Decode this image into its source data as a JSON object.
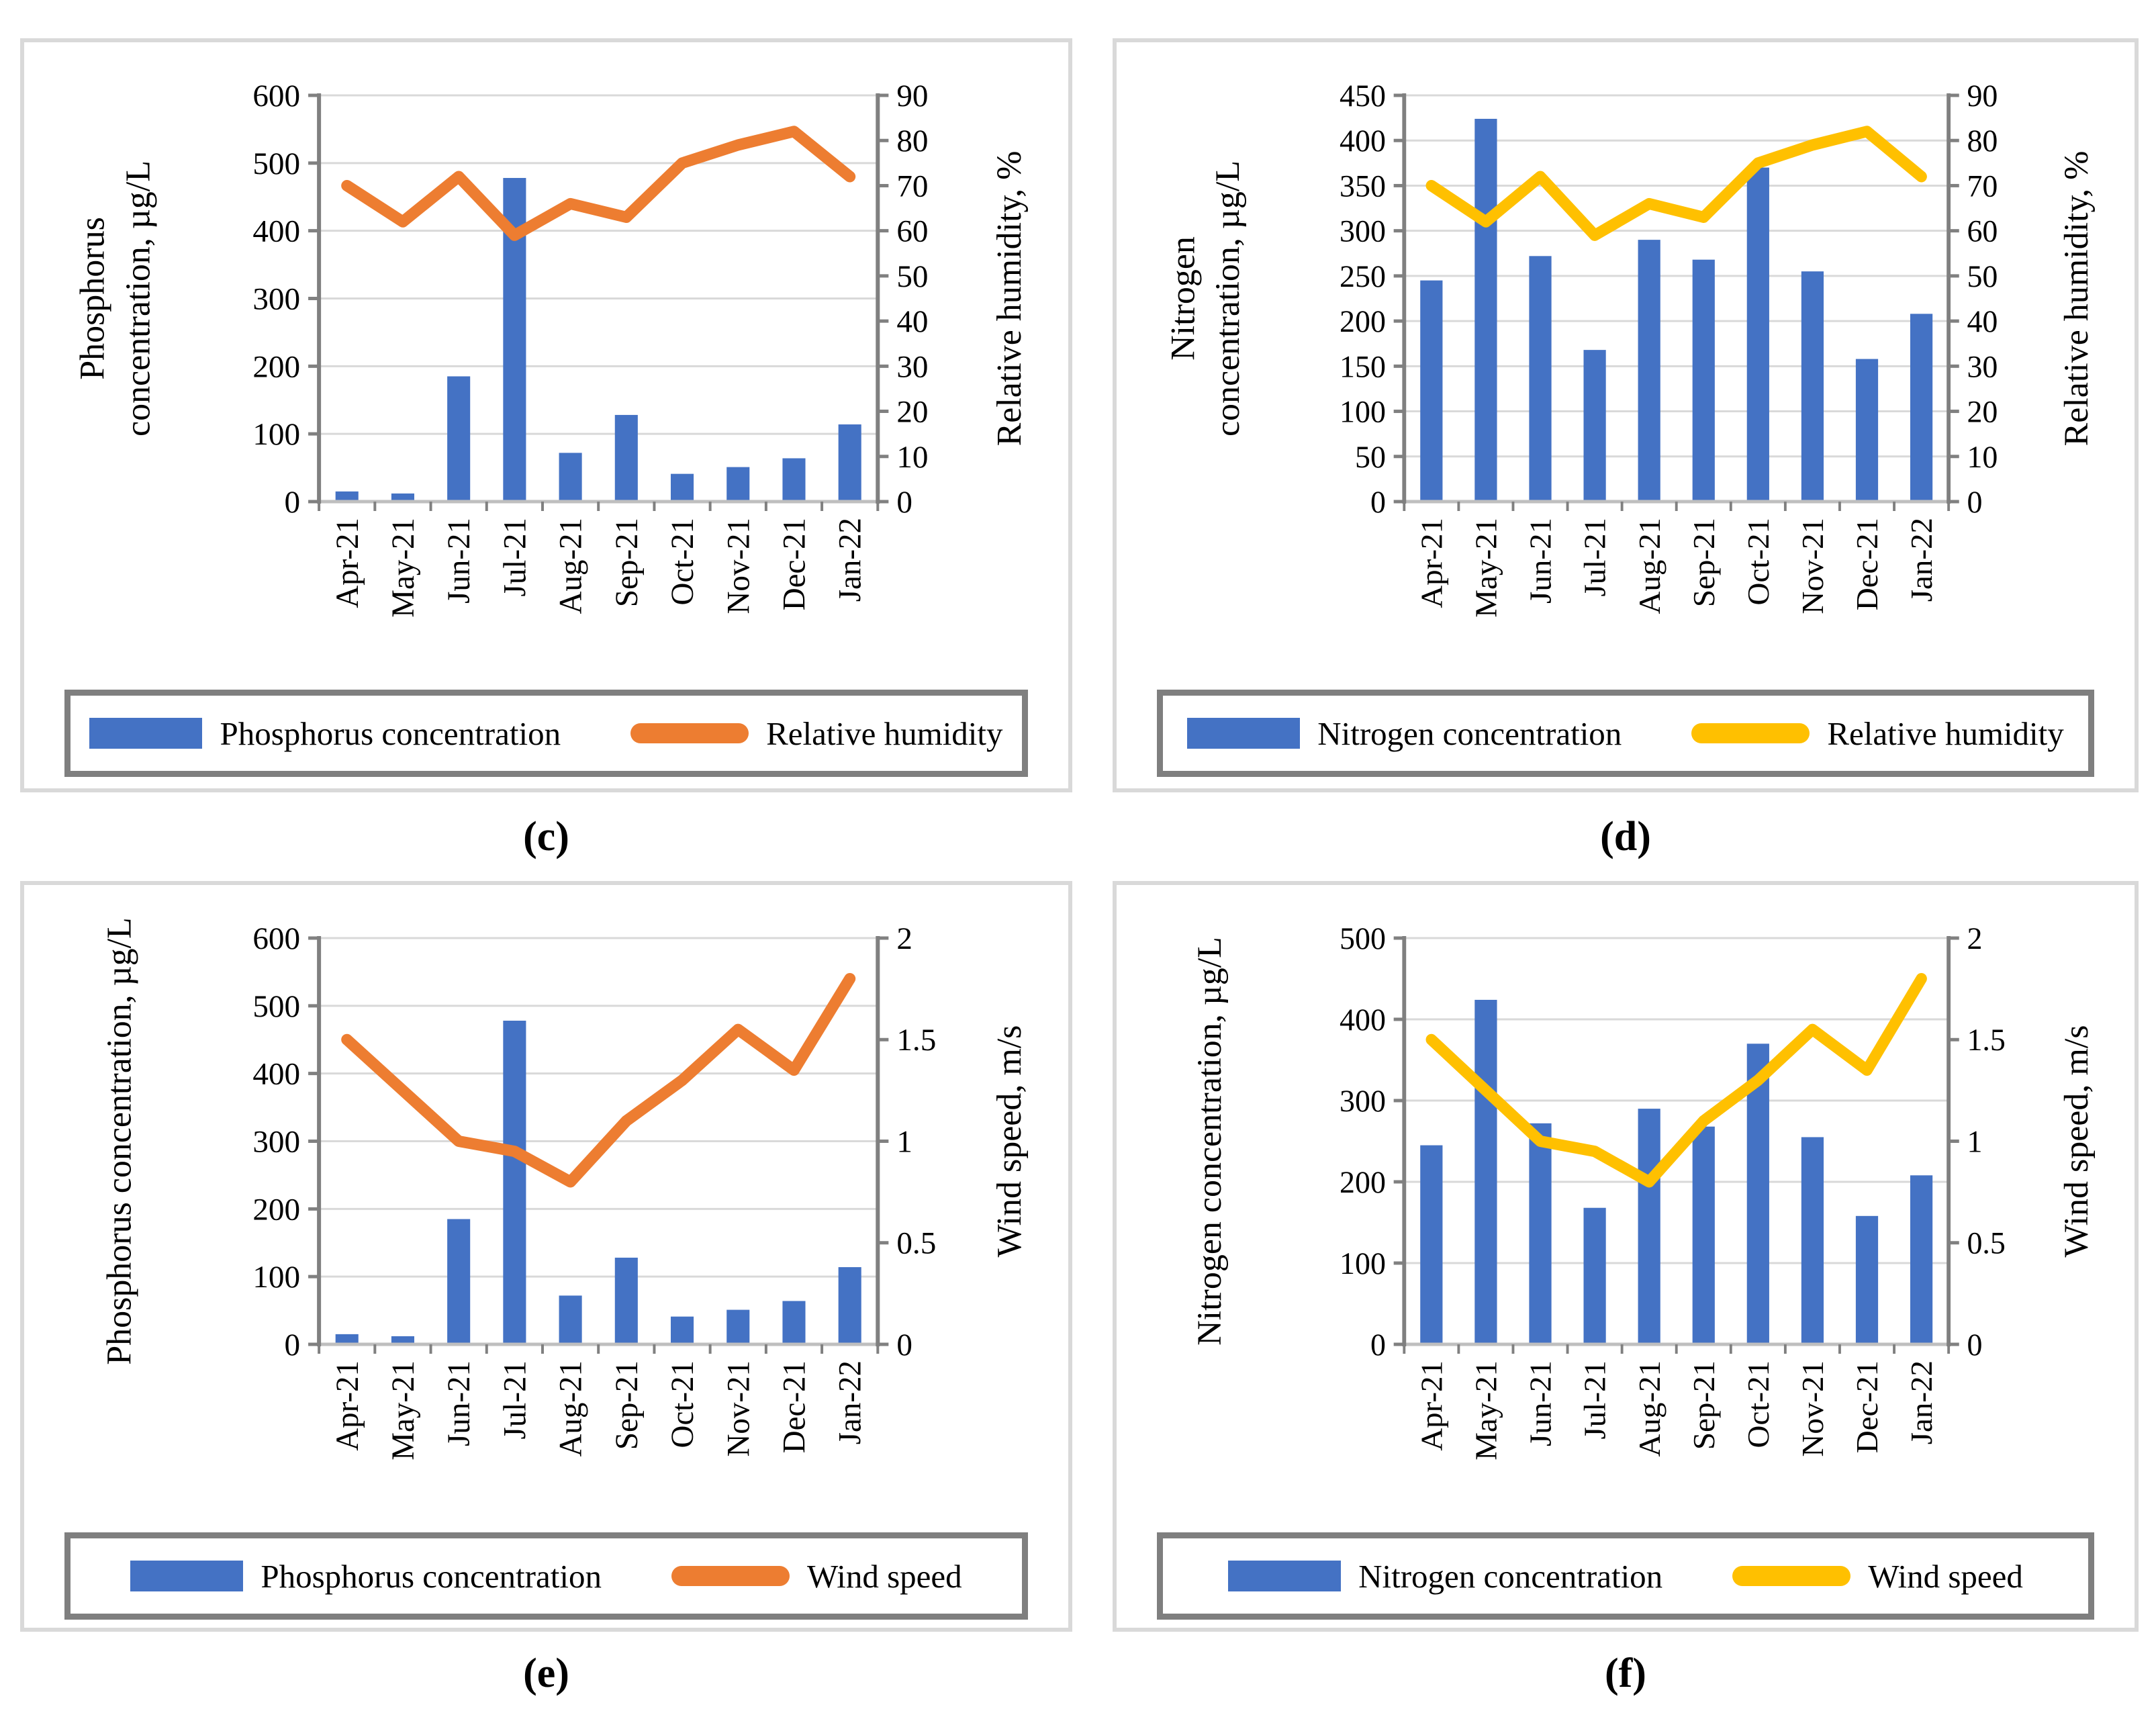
{
  "colors": {
    "bar_blue": "#4472C4",
    "line_orange": "#ED7D31",
    "line_yellow": "#FFC000",
    "gridline": "#D9D9D9",
    "value_axis": "#808080",
    "category_axis": "#BFBFBF",
    "tick": "#808080",
    "legend_border": "#7F7F7F",
    "panel_border": "#D9D9D9"
  },
  "categories": [
    "Apr-21",
    "May-21",
    "Jun-21",
    "Jul-21",
    "Aug-21",
    "Sep-21",
    "Oct-21",
    "Nov-21",
    "Dec-21",
    "Jan-22"
  ],
  "chart_data": [
    {
      "id": "c",
      "caption": "(c)",
      "type": "bar+line",
      "grid": "horizontal",
      "legend_position": "bottom",
      "categories": [
        "Apr-21",
        "May-21",
        "Jun-21",
        "Jul-21",
        "Aug-21",
        "Sep-21",
        "Oct-21",
        "Nov-21",
        "Dec-21",
        "Jan-22"
      ],
      "bars": {
        "name": "Phosphorus concentration",
        "axis": "left",
        "values": [
          15,
          12,
          185,
          478,
          72,
          128,
          41,
          51,
          64,
          114
        ]
      },
      "line": {
        "name": "Relative humidity",
        "axis": "right",
        "color": "#ED7D31",
        "values": [
          70,
          62,
          72,
          59,
          66,
          63,
          75,
          79,
          82,
          72
        ]
      },
      "left_axis": {
        "title_lines": [
          "Phosphorus",
          "concentration, µg/L"
        ],
        "min": 0,
        "max": 600,
        "step": 100
      },
      "right_axis": {
        "title": "Relative humidity, %",
        "min": 0,
        "max": 90,
        "step": 10
      },
      "legend": [
        {
          "label": "Phosphorus concentration"
        },
        {
          "label": "Relative humidity"
        }
      ]
    },
    {
      "id": "d",
      "caption": "(d)",
      "type": "bar+line",
      "grid": "horizontal",
      "legend_position": "bottom",
      "categories": [
        "Apr-21",
        "May-21",
        "Jun-21",
        "Jul-21",
        "Aug-21",
        "Sep-21",
        "Oct-21",
        "Nov-21",
        "Dec-21",
        "Jan-22"
      ],
      "bars": {
        "name": "Nitrogen concentration",
        "axis": "left",
        "values": [
          245,
          424,
          272,
          168,
          290,
          268,
          370,
          255,
          158,
          208
        ]
      },
      "line": {
        "name": "Relative humidity",
        "axis": "right",
        "color": "#FFC000",
        "values": [
          70,
          62,
          72,
          59,
          66,
          63,
          75,
          79,
          82,
          72
        ]
      },
      "left_axis": {
        "title_lines": [
          "Nitrogen",
          "concentration, µg/L"
        ],
        "min": 0,
        "max": 450,
        "step": 50
      },
      "right_axis": {
        "title": "Relative humidity, %",
        "min": 0,
        "max": 90,
        "step": 10
      },
      "legend": [
        {
          "label": "Nitrogen concentration"
        },
        {
          "label": "Relative humidity"
        }
      ]
    },
    {
      "id": "e",
      "caption": "(e)",
      "type": "bar+line",
      "grid": "horizontal",
      "legend_position": "bottom",
      "categories": [
        "Apr-21",
        "May-21",
        "Jun-21",
        "Jul-21",
        "Aug-21",
        "Sep-21",
        "Oct-21",
        "Nov-21",
        "Dec-21",
        "Jan-22"
      ],
      "bars": {
        "name": "Phosphorus concentration",
        "axis": "left",
        "values": [
          15,
          12,
          185,
          478,
          72,
          128,
          41,
          51,
          64,
          114
        ]
      },
      "line": {
        "name": "Wind speed",
        "axis": "right",
        "color": "#ED7D31",
        "values": [
          1.5,
          1.25,
          1.0,
          0.95,
          0.8,
          1.1,
          1.3,
          1.55,
          1.35,
          1.8
        ]
      },
      "left_axis": {
        "title_lines": [
          "Phosphorus concentration, µg/L"
        ],
        "min": 0,
        "max": 600,
        "step": 100
      },
      "right_axis": {
        "title": "Wind speed, m/s",
        "min": 0,
        "max": 2,
        "step": 0.5
      },
      "legend": [
        {
          "label": "Phosphorus concentration"
        },
        {
          "label": "Wind speed"
        }
      ]
    },
    {
      "id": "f",
      "caption": "(f)",
      "type": "bar+line",
      "grid": "horizontal",
      "legend_position": "bottom",
      "categories": [
        "Apr-21",
        "May-21",
        "Jun-21",
        "Jul-21",
        "Aug-21",
        "Sep-21",
        "Oct-21",
        "Nov-21",
        "Dec-21",
        "Jan-22"
      ],
      "bars": {
        "name": "Nitrogen concentration",
        "axis": "left",
        "values": [
          245,
          424,
          272,
          168,
          290,
          268,
          370,
          255,
          158,
          208
        ]
      },
      "line": {
        "name": "Wind speed",
        "axis": "right",
        "color": "#FFC000",
        "values": [
          1.5,
          1.25,
          1.0,
          0.95,
          0.8,
          1.1,
          1.3,
          1.55,
          1.35,
          1.8
        ]
      },
      "left_axis": {
        "title_lines": [
          "Nitrogen concentration, µg/L"
        ],
        "min": 0,
        "max": 500,
        "step": 100
      },
      "right_axis": {
        "title": "Wind speed, m/s",
        "min": 0,
        "max": 2,
        "step": 0.5
      },
      "legend": [
        {
          "label": "Nitrogen concentration"
        },
        {
          "label": "Wind speed"
        }
      ]
    }
  ]
}
